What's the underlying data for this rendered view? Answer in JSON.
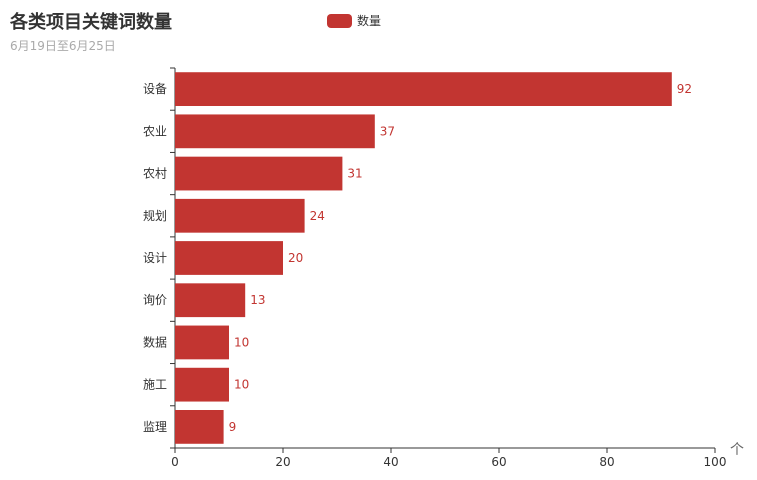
{
  "chart_data": {
    "type": "bar",
    "orientation": "horizontal",
    "title": "各类项目关键词数量",
    "subtitle": "6月19日至6月25日",
    "categories": [
      "设备",
      "农业",
      "农村",
      "规划",
      "设计",
      "询价",
      "数据",
      "施工",
      "监理"
    ],
    "series": [
      {
        "name": "数量",
        "values": [
          92,
          37,
          31,
          24,
          20,
          13,
          10,
          10,
          9
        ]
      }
    ],
    "xlim": [
      0,
      100
    ],
    "xticks": [
      "0",
      "20",
      "40",
      "60",
      "80",
      "100"
    ],
    "legend_position": "top-center",
    "bar_color": "#c23531",
    "label_color": "#c23531",
    "axis_arrow": "个"
  }
}
